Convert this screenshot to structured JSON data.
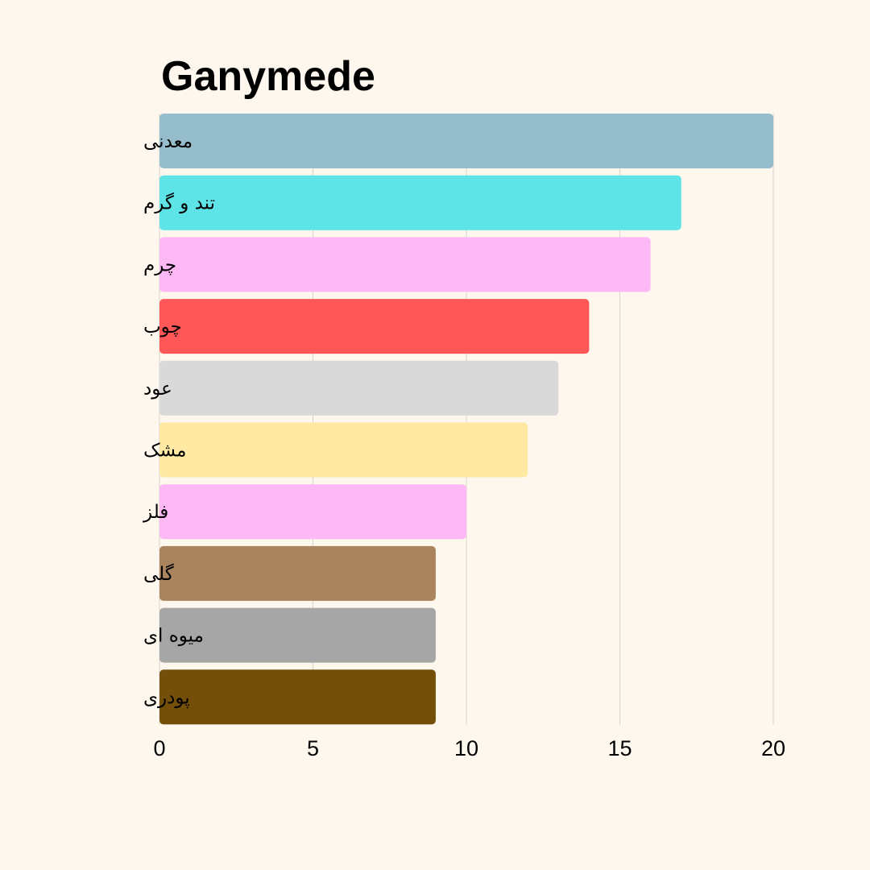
{
  "chart_data": {
    "type": "bar",
    "orientation": "horizontal",
    "title": "Ganymede",
    "xlabel": "",
    "ylabel": "",
    "xlim": [
      0,
      20
    ],
    "xticks": [
      0,
      5,
      10,
      15,
      20
    ],
    "grid": "vertical",
    "legend": "none",
    "categories": [
      "معدنی",
      "تند و گرم",
      "چرم",
      "چوب",
      "عود",
      "مشک",
      "فلز",
      "گلی",
      "میوه ای",
      "پودری"
    ],
    "values": [
      20,
      17,
      16,
      14,
      13,
      12,
      10,
      9,
      9,
      9
    ],
    "colors": [
      "#96bdcc",
      "#5ee3e7",
      "#fdb9f5",
      "#ff5757",
      "#d9d9d9",
      "#ffe9a3",
      "#fdb9f5",
      "#aa845e",
      "#a6a6a6",
      "#734f0a"
    ]
  }
}
